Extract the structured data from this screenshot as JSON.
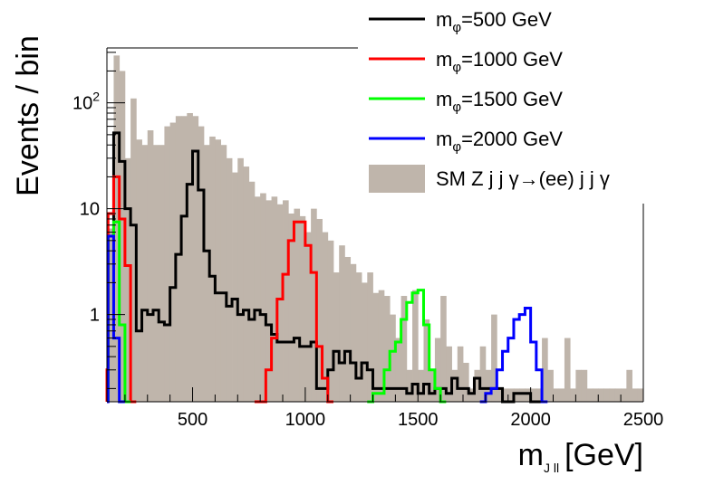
{
  "chart_data": {
    "type": "histogram",
    "xlabel": "m",
    "xlabel_sub": "J ll",
    "xlabel_unit": "[GeV]",
    "ylabel": "Events / bin",
    "x_range": [
      120,
      2500
    ],
    "y_range": [
      0.15,
      330
    ],
    "y_scale": "log",
    "bin_width": 25,
    "x_ticks": [
      500,
      1000,
      1500,
      2000,
      2500
    ],
    "y_ticks": [
      {
        "value": 1,
        "label": "1"
      },
      {
        "value": 10,
        "label": "10"
      },
      {
        "value": 100,
        "label": "10",
        "sup": "2"
      }
    ],
    "series": [
      {
        "name": "SM Z j j γ→(ee) j j γ",
        "color": "#bfb5ab",
        "style": "fill",
        "bins": [
          [
            125,
            150,
            6.5
          ],
          [
            150,
            175,
            280
          ],
          [
            175,
            200,
            200
          ],
          [
            200,
            225,
            30
          ],
          [
            225,
            250,
            110
          ],
          [
            250,
            275,
            45
          ],
          [
            275,
            300,
            40
          ],
          [
            300,
            325,
            55
          ],
          [
            325,
            350,
            40
          ],
          [
            350,
            375,
            40
          ],
          [
            375,
            400,
            60
          ],
          [
            400,
            425,
            65
          ],
          [
            425,
            450,
            75
          ],
          [
            450,
            475,
            75
          ],
          [
            475,
            500,
            80
          ],
          [
            500,
            525,
            75
          ],
          [
            525,
            550,
            60
          ],
          [
            550,
            575,
            40
          ],
          [
            575,
            600,
            48
          ],
          [
            600,
            625,
            45
          ],
          [
            625,
            650,
            40
          ],
          [
            650,
            675,
            30
          ],
          [
            675,
            700,
            22
          ],
          [
            700,
            725,
            30
          ],
          [
            725,
            750,
            25
          ],
          [
            750,
            775,
            18
          ],
          [
            775,
            800,
            13
          ],
          [
            800,
            825,
            14
          ],
          [
            825,
            850,
            12
          ],
          [
            850,
            875,
            13
          ],
          [
            875,
            900,
            11
          ],
          [
            900,
            925,
            12
          ],
          [
            925,
            950,
            9
          ],
          [
            950,
            975,
            10
          ],
          [
            975,
            1000,
            8.5
          ],
          [
            1000,
            1025,
            6
          ],
          [
            1025,
            1050,
            10
          ],
          [
            1050,
            1075,
            8
          ],
          [
            1075,
            1100,
            6
          ],
          [
            1100,
            1125,
            5
          ],
          [
            1125,
            1150,
            2.5
          ],
          [
            1150,
            1175,
            4.5
          ],
          [
            1175,
            1200,
            3.5
          ],
          [
            1200,
            1225,
            3
          ],
          [
            1225,
            1250,
            2.5
          ],
          [
            1250,
            1275,
            2
          ],
          [
            1275,
            1300,
            2.5
          ],
          [
            1300,
            1325,
            1.6
          ],
          [
            1325,
            1350,
            1.7
          ],
          [
            1350,
            1375,
            1.5
          ],
          [
            1375,
            1400,
            1
          ],
          [
            1400,
            1425,
            0.6
          ],
          [
            1425,
            1450,
            1.5
          ],
          [
            1450,
            1475,
            0.3
          ],
          [
            1475,
            1500,
            1.7
          ],
          [
            1500,
            1525,
            0.3
          ],
          [
            1525,
            1550,
            0.9
          ],
          [
            1550,
            1575,
            0.3
          ],
          [
            1575,
            1600,
            0.6
          ],
          [
            1600,
            1625,
            1.5
          ],
          [
            1625,
            1650,
            0.5
          ],
          [
            1650,
            1675,
            0.3
          ],
          [
            1675,
            1700,
            0.5
          ],
          [
            1700,
            1725,
            0.35
          ],
          [
            1725,
            1750,
            0.2
          ],
          [
            1750,
            1775,
            0.3
          ],
          [
            1775,
            1800,
            0.5
          ],
          [
            1800,
            1825,
            0.3
          ],
          [
            1825,
            1850,
            1
          ],
          [
            1850,
            1875,
            0.2
          ],
          [
            1875,
            1900,
            0.2
          ],
          [
            1900,
            1925,
            0.2
          ],
          [
            1925,
            1950,
            0.2
          ],
          [
            1950,
            1975,
            0.2
          ],
          [
            1975,
            2000,
            0.2
          ],
          [
            2000,
            2025,
            0.2
          ],
          [
            2025,
            2050,
            0.2
          ],
          [
            2050,
            2075,
            0.6
          ],
          [
            2075,
            2100,
            0.3
          ],
          [
            2100,
            2125,
            0.2
          ],
          [
            2125,
            2150,
            0.2
          ],
          [
            2150,
            2175,
            0.6
          ],
          [
            2175,
            2200,
            0.2
          ],
          [
            2200,
            2225,
            0.3
          ],
          [
            2225,
            2250,
            0.3
          ],
          [
            2250,
            2275,
            0.2
          ],
          [
            2275,
            2300,
            0.2
          ],
          [
            2300,
            2325,
            0.2
          ],
          [
            2325,
            2350,
            0.2
          ],
          [
            2350,
            2375,
            0.2
          ],
          [
            2375,
            2400,
            0.2
          ],
          [
            2400,
            2425,
            0.2
          ],
          [
            2425,
            2450,
            0.3
          ],
          [
            2450,
            2475,
            0.2
          ],
          [
            2475,
            2500,
            0.2
          ]
        ]
      },
      {
        "name": "m_φ=500 GeV",
        "label_main": "m",
        "label_sub": "φ",
        "label_rest": "=500 GeV",
        "color": "#000000",
        "style": "step",
        "bins": [
          [
            125,
            150,
            5.5
          ],
          [
            150,
            175,
            52
          ],
          [
            175,
            200,
            28
          ],
          [
            200,
            225,
            10
          ],
          [
            225,
            250,
            7
          ],
          [
            250,
            275,
            0.7
          ],
          [
            275,
            300,
            1.1
          ],
          [
            300,
            325,
            1.0
          ],
          [
            325,
            350,
            1.1
          ],
          [
            350,
            375,
            0.85
          ],
          [
            375,
            400,
            0.8
          ],
          [
            400,
            425,
            1.8
          ],
          [
            425,
            450,
            3.7
          ],
          [
            450,
            475,
            8.5
          ],
          [
            475,
            500,
            17
          ],
          [
            500,
            525,
            35
          ],
          [
            525,
            550,
            15
          ],
          [
            550,
            575,
            4
          ],
          [
            575,
            600,
            2.3
          ],
          [
            600,
            625,
            1.6
          ],
          [
            625,
            650,
            1.6
          ],
          [
            650,
            675,
            1.2
          ],
          [
            675,
            700,
            1.4
          ],
          [
            700,
            725,
            1.0
          ],
          [
            725,
            750,
            1.1
          ],
          [
            750,
            775,
            0.9
          ],
          [
            775,
            800,
            1.1
          ],
          [
            800,
            825,
            1.0
          ],
          [
            825,
            850,
            0.8
          ],
          [
            850,
            875,
            0.65
          ],
          [
            875,
            900,
            0.55
          ],
          [
            900,
            925,
            0.55
          ],
          [
            925,
            950,
            0.55
          ],
          [
            950,
            975,
            0.6
          ],
          [
            975,
            1000,
            0.5
          ],
          [
            1000,
            1025,
            0.5
          ],
          [
            1025,
            1050,
            0.55
          ],
          [
            1050,
            1075,
            0.2
          ],
          [
            1075,
            1100,
            0.2
          ],
          [
            1100,
            1125,
            0.3
          ],
          [
            1125,
            1150,
            0.45
          ],
          [
            1150,
            1175,
            0.35
          ],
          [
            1175,
            1200,
            0.45
          ],
          [
            1200,
            1225,
            0.35
          ],
          [
            1225,
            1250,
            0.25
          ],
          [
            1250,
            1275,
            0.35
          ],
          [
            1275,
            1300,
            0.3
          ],
          [
            1300,
            1325,
            0.2
          ],
          [
            1325,
            1350,
            0.2
          ],
          [
            1350,
            1375,
            0.2
          ],
          [
            1375,
            1400,
            0.2
          ],
          [
            1400,
            1425,
            0.2
          ],
          [
            1425,
            1450,
            0.2
          ],
          [
            1450,
            1475,
            0.18
          ],
          [
            1475,
            1500,
            0.22
          ],
          [
            1500,
            1525,
            0.18
          ],
          [
            1525,
            1550,
            0.22
          ],
          [
            1550,
            1575,
            0.18
          ],
          [
            1575,
            1600,
            0.2
          ],
          [
            1600,
            1625,
            0.2
          ],
          [
            1625,
            1650,
            0.18
          ],
          [
            1650,
            1675,
            0.25
          ],
          [
            1675,
            1700,
            0.2
          ],
          [
            1700,
            1725,
            0.2
          ],
          [
            1725,
            1750,
            0.18
          ],
          [
            1750,
            1775,
            0.25
          ],
          [
            1775,
            1800,
            0.2
          ],
          [
            1800,
            1825,
            0.2
          ],
          [
            1825,
            1850,
            0.2
          ],
          [
            1850,
            1875,
            0.2
          ],
          [
            1875,
            1900,
            0.15
          ],
          [
            1900,
            1925,
            0.15
          ],
          [
            1925,
            1950,
            0.18
          ],
          [
            1950,
            1975,
            0.18
          ],
          [
            1975,
            2000,
            0.18
          ],
          [
            2000,
            2025,
            0.15
          ],
          [
            2025,
            2050,
            0.15
          ]
        ]
      },
      {
        "name": "m_φ=1000 GeV",
        "label_main": "m",
        "label_sub": "φ",
        "label_rest": "=1000 GeV",
        "color": "#ff0000",
        "style": "step",
        "bins": [
          [
            100,
            125,
            0.3
          ],
          [
            125,
            150,
            9
          ],
          [
            150,
            175,
            20
          ],
          [
            175,
            200,
            8
          ],
          [
            200,
            225,
            2.9
          ],
          [
            225,
            250,
            0.15
          ],
          [
            775,
            800,
            0.15
          ],
          [
            800,
            825,
            0.15
          ],
          [
            825,
            850,
            0.3
          ],
          [
            850,
            875,
            0.6
          ],
          [
            875,
            900,
            1.4
          ],
          [
            900,
            925,
            2.4
          ],
          [
            925,
            950,
            5
          ],
          [
            950,
            975,
            7.5
          ],
          [
            975,
            1000,
            7.5
          ],
          [
            1000,
            1025,
            4.5
          ],
          [
            1025,
            1050,
            2.5
          ],
          [
            1050,
            1075,
            0.5
          ],
          [
            1075,
            1100,
            0.25
          ],
          [
            1100,
            1125,
            0.15
          ]
        ]
      },
      {
        "name": "m_φ=1500 GeV",
        "label_main": "m",
        "label_sub": "φ",
        "label_rest": "=1500 GeV",
        "color": "#00ff00",
        "style": "step",
        "bins": [
          [
            125,
            150,
            5.5
          ],
          [
            150,
            175,
            7.5
          ],
          [
            175,
            200,
            0.8
          ],
          [
            200,
            225,
            0.15
          ],
          [
            1275,
            1300,
            0.15
          ],
          [
            1300,
            1325,
            0.18
          ],
          [
            1325,
            1350,
            0.18
          ],
          [
            1350,
            1375,
            0.3
          ],
          [
            1375,
            1400,
            0.45
          ],
          [
            1400,
            1425,
            0.55
          ],
          [
            1425,
            1450,
            0.9
          ],
          [
            1450,
            1475,
            1.3
          ],
          [
            1475,
            1500,
            1.6
          ],
          [
            1500,
            1525,
            1.7
          ],
          [
            1525,
            1550,
            0.8
          ],
          [
            1550,
            1575,
            0.3
          ],
          [
            1575,
            1600,
            0.2
          ],
          [
            1600,
            1625,
            0.15
          ]
        ]
      },
      {
        "name": "m_φ=2000 GeV",
        "label_main": "m",
        "label_sub": "φ",
        "label_rest": "=2000 GeV",
        "color": "#0000ff",
        "style": "step",
        "bins": [
          [
            100,
            125,
            0.15
          ],
          [
            125,
            150,
            5.5
          ],
          [
            150,
            175,
            0.6
          ],
          [
            175,
            200,
            0.15
          ],
          [
            1775,
            1800,
            0.15
          ],
          [
            1800,
            1825,
            0.18
          ],
          [
            1825,
            1850,
            0.2
          ],
          [
            1850,
            1875,
            0.3
          ],
          [
            1875,
            1900,
            0.45
          ],
          [
            1900,
            1925,
            0.6
          ],
          [
            1925,
            1950,
            0.9
          ],
          [
            1950,
            1975,
            1.0
          ],
          [
            1975,
            2000,
            1.15
          ],
          [
            2000,
            2025,
            0.55
          ],
          [
            2025,
            2050,
            0.3
          ],
          [
            2050,
            2075,
            0.15
          ]
        ]
      }
    ],
    "legend": {
      "position": "top-right",
      "entries": [
        {
          "main": "m",
          "sub": "φ",
          "rest": "=500 GeV",
          "color": "#000000",
          "swatch": "line"
        },
        {
          "main": "m",
          "sub": "φ",
          "rest": "=1000 GeV",
          "color": "#ff0000",
          "swatch": "line"
        },
        {
          "main": "m",
          "sub": "φ",
          "rest": "=1500 GeV",
          "color": "#00ff00",
          "swatch": "line"
        },
        {
          "main": "m",
          "sub": "φ",
          "rest": "=2000 GeV",
          "color": "#0000ff",
          "swatch": "line"
        },
        {
          "text": "SM Z j j γ→(ee) j j γ",
          "color": "#bfb5ab",
          "swatch": "box"
        }
      ]
    }
  }
}
